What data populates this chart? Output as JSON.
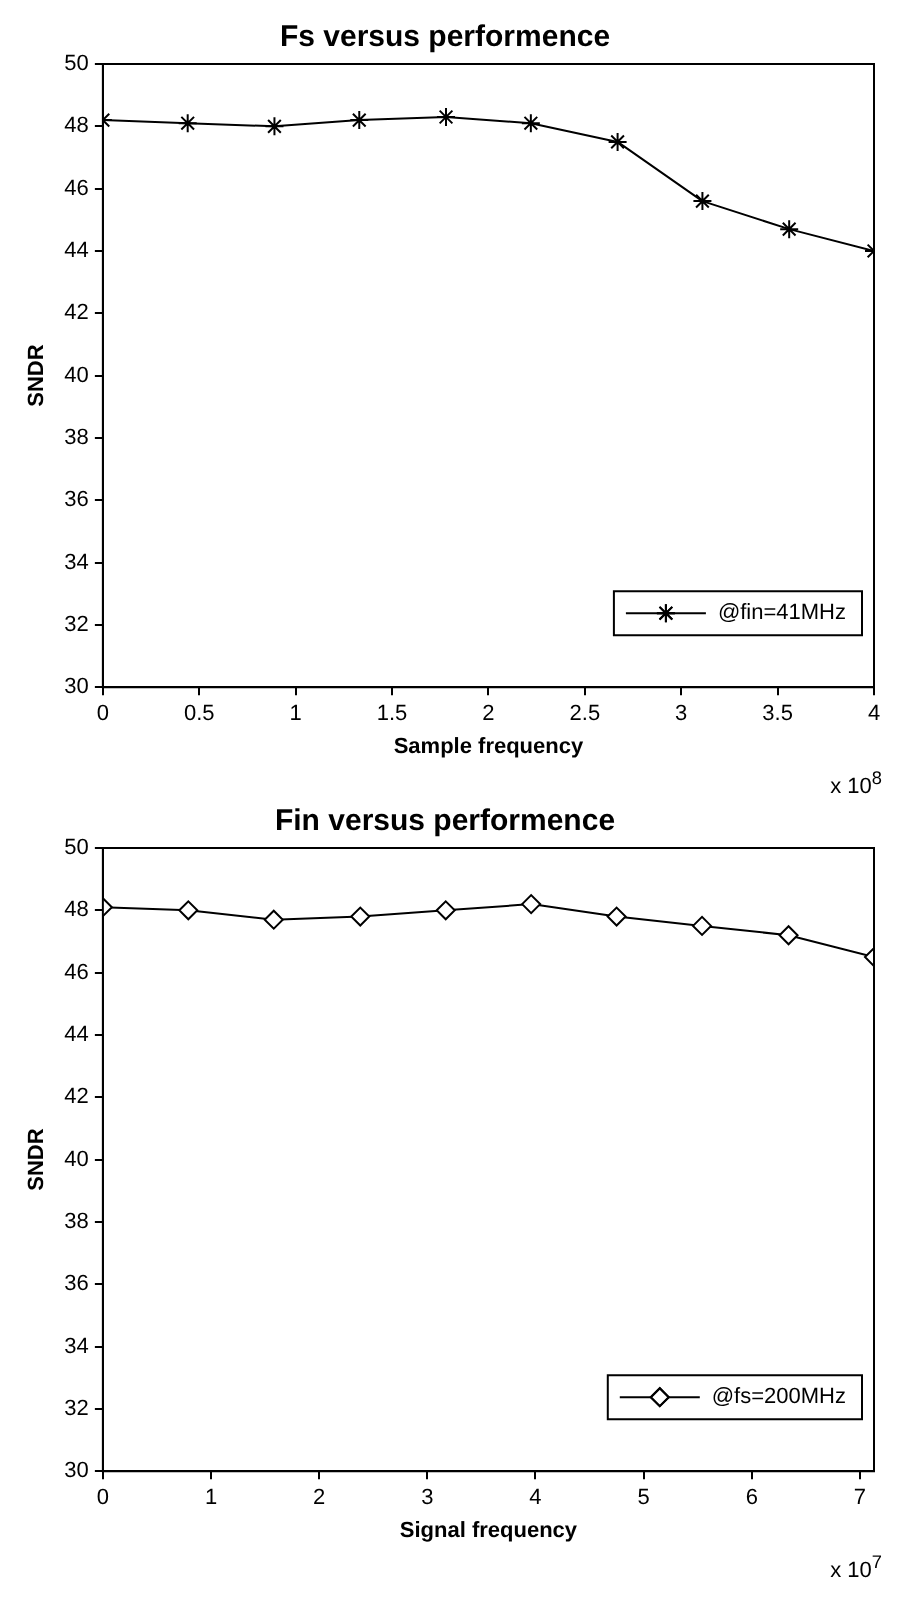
{
  "chart_data": [
    {
      "type": "line",
      "title": "Fs versus performence",
      "xlabel": "Sample frequency",
      "ylabel": "SNDR",
      "annotations": [
        "x 10$^{8}$"
      ],
      "x": [
        0,
        0.44,
        0.89,
        1.33,
        1.78,
        2.22,
        2.67,
        3.11,
        3.56,
        4
      ],
      "series": [
        {
          "name": "@fin=41MHz",
          "color": "#000000",
          "values": [
            48.2,
            48.1,
            48.0,
            48.2,
            48.3,
            48.1,
            47.5,
            45.6,
            44.7,
            44.0
          ]
        }
      ],
      "xlim": [
        0,
        4
      ],
      "xticks": [
        0,
        0.5,
        1,
        1.5,
        2,
        2.5,
        3,
        3.5,
        4
      ],
      "ylim": [
        30,
        50
      ],
      "yticks": [
        30,
        32,
        34,
        36,
        38,
        40,
        42,
        44,
        46,
        48,
        50
      ],
      "grid": false,
      "legend": "bottom right",
      "marker": "cross",
      "line_style": "solid"
    },
    {
      "type": "line",
      "title": "Fin versus performence",
      "xlabel": "Signal frequency",
      "ylabel": "SNDR",
      "annotations": [
        "x 10$^{7}$"
      ],
      "x": [
        0,
        0.79,
        1.58,
        2.38,
        3.17,
        3.96,
        4.75,
        5.54,
        6.34,
        7.13
      ],
      "series": [
        {
          "name": "@fs=200MHz",
          "color": "#000000",
          "values": [
            48.1,
            48.0,
            47.7,
            47.8,
            48.0,
            48.2,
            47.8,
            47.5,
            47.2,
            46.5
          ]
        }
      ],
      "xlim": [
        0,
        7.13
      ],
      "xticks": [
        0,
        1,
        2,
        3,
        4,
        5,
        6,
        7
      ],
      "ylim": [
        30,
        50
      ],
      "yticks": [
        30,
        32,
        34,
        36,
        38,
        40,
        42,
        44,
        46,
        48,
        50
      ],
      "grid": false,
      "legend": "bottom right",
      "marker": "diamond",
      "line_style": "solid"
    }
  ]
}
